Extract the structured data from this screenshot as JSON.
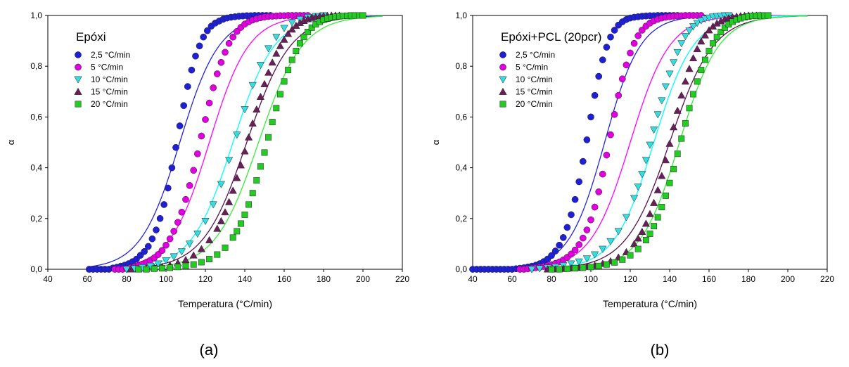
{
  "chart_data": [
    {
      "type": "scatter",
      "panel_label": "(a)",
      "title": "Epóxi",
      "xlabel": "Temperatura (°C/min)",
      "ylabel": "α",
      "xlim": [
        40,
        220
      ],
      "ylim": [
        0,
        1
      ],
      "xticks": [
        40,
        60,
        80,
        100,
        120,
        140,
        160,
        180,
        200,
        220
      ],
      "yticks": [
        "0,0",
        "0,2",
        "0,4",
        "0,6",
        "0,8",
        "1,0"
      ],
      "grid": false,
      "legend_position": "top-left",
      "series": [
        {
          "name": "2,5 °C/min",
          "marker": "circle",
          "color": "#1f1fd6",
          "line_color": "#2323e0",
          "x": [
            61,
            63,
            65,
            67,
            69,
            71,
            73,
            75,
            77,
            79,
            81,
            83,
            85,
            87,
            89,
            91,
            93,
            95,
            97,
            99,
            101,
            103,
            105,
            107,
            109,
            111,
            113,
            115,
            117,
            119,
            121,
            123,
            125,
            127,
            129,
            131,
            133,
            135,
            137,
            139,
            141,
            143,
            145,
            147,
            149,
            151,
            153
          ],
          "y": [
            0,
            0,
            0,
            0,
            0,
            0,
            0.005,
            0.008,
            0.012,
            0.016,
            0.022,
            0.03,
            0.04,
            0.055,
            0.07,
            0.09,
            0.12,
            0.155,
            0.2,
            0.255,
            0.32,
            0.4,
            0.48,
            0.565,
            0.645,
            0.72,
            0.785,
            0.84,
            0.88,
            0.915,
            0.94,
            0.958,
            0.97,
            0.978,
            0.985,
            0.99,
            0.993,
            0.995,
            0.997,
            0.998,
            0.999,
            0.999,
            1,
            1,
            1,
            1,
            1
          ],
          "fit_x0": 107,
          "fit_k": 0.1
        },
        {
          "name": "5 °C/min",
          "marker": "circle",
          "color": "#e000e0",
          "line_color": "#ff00ff",
          "x": [
            74,
            76,
            78,
            80,
            82,
            84,
            86,
            88,
            90,
            92,
            94,
            96,
            98,
            100,
            102,
            104,
            106,
            108,
            110,
            112,
            114,
            116,
            118,
            120,
            122,
            124,
            126,
            128,
            130,
            132,
            134,
            136,
            138,
            140,
            142,
            144,
            146,
            148,
            150,
            152,
            154,
            156,
            158,
            160,
            162,
            164,
            166,
            168,
            170,
            172
          ],
          "y": [
            0,
            0,
            0,
            0.003,
            0.006,
            0.01,
            0.014,
            0.02,
            0.027,
            0.035,
            0.045,
            0.058,
            0.074,
            0.095,
            0.12,
            0.15,
            0.185,
            0.225,
            0.275,
            0.33,
            0.39,
            0.455,
            0.525,
            0.59,
            0.655,
            0.715,
            0.77,
            0.815,
            0.855,
            0.89,
            0.915,
            0.937,
            0.953,
            0.966,
            0.975,
            0.982,
            0.987,
            0.991,
            0.994,
            0.996,
            0.997,
            0.998,
            0.999,
            0.999,
            1,
            1,
            1,
            1,
            1,
            1
          ],
          "fit_x0": 122,
          "fit_k": 0.1
        },
        {
          "name": "10 °C/min",
          "marker": "triangle-down",
          "color": "#33dde0",
          "line_color": "#00ffff",
          "x": [
            80,
            84,
            88,
            92,
            96,
            100,
            104,
            108,
            112,
            116,
            120,
            124,
            128,
            132,
            136,
            140,
            144,
            148,
            152,
            156,
            160,
            164,
            168,
            172,
            176,
            180
          ],
          "y": [
            0,
            0.003,
            0.007,
            0.013,
            0.022,
            0.035,
            0.05,
            0.07,
            0.1,
            0.14,
            0.19,
            0.255,
            0.335,
            0.43,
            0.53,
            0.63,
            0.725,
            0.805,
            0.87,
            0.915,
            0.95,
            0.972,
            0.985,
            0.993,
            0.997,
            1
          ],
          "fit_x0": 134,
          "fit_k": 0.095
        },
        {
          "name": "15 °C/min",
          "marker": "triangle-up",
          "color": "#6b1f5a",
          "line_color": "#5a1050",
          "x": [
            82,
            86,
            90,
            94,
            98,
            102,
            106,
            110,
            114,
            118,
            122,
            126,
            128,
            130,
            132,
            134,
            136,
            138,
            140,
            142,
            144,
            146,
            148,
            150,
            152,
            154,
            156,
            158,
            160,
            162,
            164,
            166,
            168,
            170,
            172,
            174,
            176,
            178,
            180,
            182,
            184,
            186,
            188
          ],
          "y": [
            0,
            0,
            0.003,
            0.006,
            0.01,
            0.016,
            0.025,
            0.037,
            0.055,
            0.08,
            0.115,
            0.16,
            0.19,
            0.225,
            0.265,
            0.31,
            0.36,
            0.41,
            0.465,
            0.52,
            0.575,
            0.63,
            0.68,
            0.73,
            0.775,
            0.815,
            0.85,
            0.88,
            0.905,
            0.928,
            0.945,
            0.96,
            0.971,
            0.979,
            0.986,
            0.991,
            0.994,
            0.996,
            0.998,
            0.999,
            1,
            1,
            1
          ],
          "fit_x0": 141,
          "fit_k": 0.09
        },
        {
          "name": "20 °C/min",
          "marker": "square",
          "color": "#22cc22",
          "line_color": "#33ee33",
          "x": [
            86,
            90,
            94,
            98,
            102,
            106,
            110,
            114,
            118,
            122,
            126,
            130,
            134,
            136,
            138,
            140,
            142,
            144,
            146,
            148,
            150,
            152,
            154,
            156,
            158,
            160,
            162,
            164,
            166,
            168,
            170,
            172,
            174,
            176,
            178,
            180,
            182,
            184,
            186,
            188,
            190,
            192,
            194,
            196,
            198,
            200
          ],
          "y": [
            0,
            0,
            0.002,
            0.004,
            0.006,
            0.009,
            0.013,
            0.019,
            0.028,
            0.04,
            0.058,
            0.085,
            0.125,
            0.15,
            0.18,
            0.215,
            0.255,
            0.3,
            0.35,
            0.405,
            0.46,
            0.52,
            0.58,
            0.635,
            0.69,
            0.74,
            0.785,
            0.825,
            0.86,
            0.89,
            0.915,
            0.935,
            0.952,
            0.965,
            0.975,
            0.983,
            0.988,
            0.992,
            0.995,
            0.997,
            0.998,
            0.999,
            1,
            1,
            1,
            1
          ],
          "fit_x0": 147,
          "fit_k": 0.09
        }
      ]
    },
    {
      "type": "scatter",
      "panel_label": "(b)",
      "title": "Epóxi+PCL (20pcr)",
      "xlabel": "Temperatura (°C/min)",
      "ylabel": "α",
      "xlim": [
        40,
        220
      ],
      "ylim": [
        0,
        1
      ],
      "xticks": [
        40,
        60,
        80,
        100,
        120,
        140,
        160,
        180,
        200,
        220
      ],
      "yticks": [
        "0,0",
        "0,2",
        "0,4",
        "0,6",
        "0,8",
        "1,0"
      ],
      "grid": false,
      "legend_position": "top-left",
      "series": [
        {
          "name": "2,5 °C/min",
          "marker": "circle",
          "color": "#1f1fd6",
          "line_color": "#2323e0",
          "x": [
            40,
            42,
            44,
            46,
            48,
            50,
            52,
            54,
            56,
            58,
            60,
            62,
            64,
            66,
            68,
            70,
            72,
            74,
            76,
            78,
            80,
            82,
            84,
            86,
            88,
            90,
            92,
            94,
            96,
            98,
            100,
            102,
            104,
            106,
            108,
            110,
            112,
            114,
            116,
            118,
            120,
            122,
            124,
            126,
            128,
            130,
            132,
            134,
            136,
            138,
            140,
            142,
            144
          ],
          "y": [
            0,
            0,
            0,
            0,
            0,
            0,
            0,
            0,
            0,
            0,
            0,
            0.002,
            0.004,
            0.006,
            0.009,
            0.012,
            0.016,
            0.022,
            0.03,
            0.04,
            0.054,
            0.072,
            0.095,
            0.125,
            0.165,
            0.215,
            0.275,
            0.345,
            0.425,
            0.51,
            0.6,
            0.685,
            0.76,
            0.825,
            0.875,
            0.915,
            0.942,
            0.962,
            0.975,
            0.984,
            0.99,
            0.993,
            0.995,
            0.997,
            0.998,
            0.999,
            0.999,
            1,
            1,
            1,
            1,
            1,
            1
          ],
          "fit_x0": 107,
          "fit_k": 0.11
        },
        {
          "name": "5 °C/min",
          "marker": "circle",
          "color": "#e000e0",
          "line_color": "#ff00ff",
          "x": [
            64,
            66,
            68,
            70,
            72,
            74,
            76,
            78,
            80,
            82,
            84,
            86,
            88,
            90,
            92,
            94,
            96,
            98,
            100,
            102,
            104,
            106,
            108,
            110,
            112,
            114,
            116,
            118,
            120,
            122,
            124,
            126,
            128,
            130,
            132,
            134,
            136,
            138,
            140,
            142,
            144,
            146,
            148,
            150,
            152,
            154,
            156
          ],
          "y": [
            0,
            0,
            0.002,
            0.004,
            0.006,
            0.008,
            0.011,
            0.014,
            0.018,
            0.023,
            0.029,
            0.037,
            0.047,
            0.06,
            0.076,
            0.097,
            0.123,
            0.155,
            0.195,
            0.245,
            0.305,
            0.375,
            0.45,
            0.53,
            0.61,
            0.685,
            0.75,
            0.805,
            0.852,
            0.89,
            0.92,
            0.942,
            0.958,
            0.97,
            0.979,
            0.985,
            0.99,
            0.993,
            0.995,
            0.997,
            0.998,
            0.999,
            1,
            1,
            1,
            1,
            1
          ],
          "fit_x0": 120,
          "fit_k": 0.1
        },
        {
          "name": "10 °C/min",
          "marker": "triangle-down",
          "color": "#33dde0",
          "line_color": "#00ffff",
          "x": [
            70,
            74,
            78,
            82,
            86,
            90,
            94,
            98,
            102,
            106,
            110,
            114,
            118,
            122,
            124,
            126,
            128,
            130,
            132,
            134,
            136,
            138,
            140,
            142,
            144,
            146,
            148,
            150,
            152,
            154,
            156,
            158,
            160,
            162,
            164,
            166,
            168,
            170
          ],
          "y": [
            0,
            0.003,
            0.006,
            0.01,
            0.015,
            0.022,
            0.03,
            0.042,
            0.058,
            0.08,
            0.11,
            0.15,
            0.205,
            0.28,
            0.325,
            0.375,
            0.43,
            0.49,
            0.55,
            0.61,
            0.665,
            0.72,
            0.77,
            0.815,
            0.855,
            0.89,
            0.918,
            0.94,
            0.957,
            0.97,
            0.98,
            0.987,
            0.991,
            0.995,
            0.997,
            0.998,
            1,
            1
          ],
          "fit_x0": 132,
          "fit_k": 0.1
        },
        {
          "name": "15 °C/min",
          "marker": "triangle-up",
          "color": "#6b1f5a",
          "line_color": "#5a1050",
          "x": [
            78,
            82,
            86,
            90,
            94,
            98,
            102,
            106,
            110,
            114,
            118,
            122,
            124,
            126,
            128,
            130,
            132,
            134,
            136,
            138,
            140,
            142,
            144,
            146,
            148,
            150,
            152,
            154,
            156,
            158,
            160,
            162,
            164,
            166,
            168,
            170,
            172,
            174,
            176,
            178,
            180,
            182,
            184,
            186
          ],
          "y": [
            0,
            0,
            0.002,
            0.004,
            0.006,
            0.01,
            0.015,
            0.022,
            0.032,
            0.047,
            0.068,
            0.1,
            0.122,
            0.148,
            0.18,
            0.218,
            0.262,
            0.312,
            0.368,
            0.43,
            0.495,
            0.56,
            0.625,
            0.685,
            0.74,
            0.79,
            0.832,
            0.868,
            0.898,
            0.922,
            0.942,
            0.957,
            0.969,
            0.978,
            0.985,
            0.99,
            0.993,
            0.996,
            0.998,
            0.999,
            1,
            1,
            1,
            1
          ],
          "fit_x0": 140,
          "fit_k": 0.09
        },
        {
          "name": "20 °C/min",
          "marker": "square",
          "color": "#22cc22",
          "line_color": "#33ee33",
          "x": [
            80,
            84,
            88,
            92,
            96,
            100,
            104,
            108,
            112,
            116,
            120,
            124,
            128,
            130,
            132,
            134,
            136,
            138,
            140,
            142,
            144,
            146,
            148,
            150,
            152,
            154,
            156,
            158,
            160,
            162,
            164,
            166,
            168,
            170,
            172,
            174,
            176,
            178,
            180,
            182,
            184,
            186,
            188,
            190
          ],
          "y": [
            0,
            0,
            0.002,
            0.004,
            0.006,
            0.009,
            0.013,
            0.019,
            0.027,
            0.038,
            0.055,
            0.08,
            0.115,
            0.14,
            0.17,
            0.205,
            0.245,
            0.29,
            0.34,
            0.395,
            0.455,
            0.515,
            0.575,
            0.635,
            0.69,
            0.74,
            0.785,
            0.825,
            0.86,
            0.89,
            0.915,
            0.935,
            0.952,
            0.965,
            0.975,
            0.983,
            0.989,
            0.993,
            0.996,
            0.998,
            0.999,
            1,
            1,
            1
          ],
          "fit_x0": 145,
          "fit_k": 0.1
        }
      ]
    }
  ]
}
